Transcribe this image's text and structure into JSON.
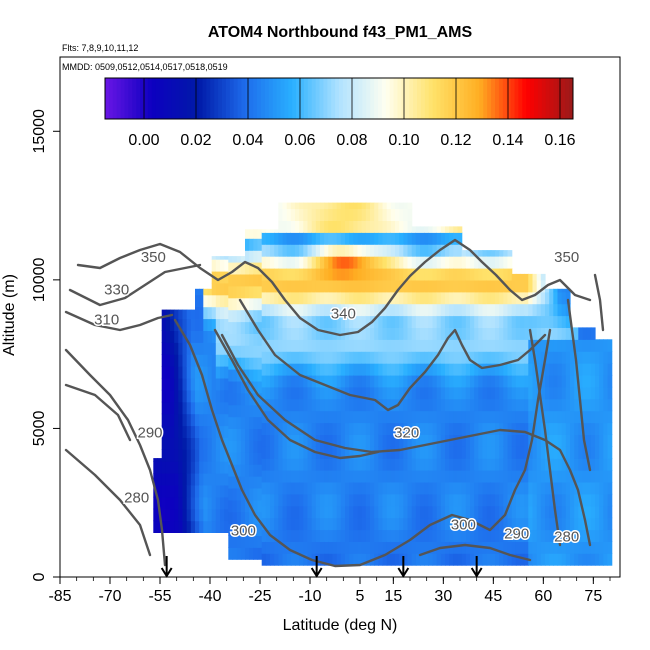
{
  "chart_data": {
    "type": "heatmap",
    "title": "ATOM4 Northbound f43_PM1_AMS",
    "subtitle_flights": "Flts: 7,8,9,10,11,12",
    "subtitle_dates": "MMDD: 0509,0512,0514,0517,0518,0519",
    "xlabel": "Latitude (deg N)",
    "ylabel": "Altitude (m)",
    "xlim": [
      -85,
      83
    ],
    "ylim": [
      0,
      17500
    ],
    "x_ticks": [
      -85,
      -70,
      -55,
      -40,
      -25,
      -10,
      5,
      15,
      30,
      45,
      60,
      75
    ],
    "y_ticks": [
      0,
      5000,
      10000,
      15000
    ],
    "colorbar": {
      "range": [
        -0.015,
        0.165
      ],
      "ticks": [
        "0.00",
        "0.02",
        "0.04",
        "0.06",
        "0.08",
        "0.10",
        "0.12",
        "0.14",
        "0.16"
      ],
      "tick_values": [
        0.0,
        0.02,
        0.04,
        0.06,
        0.08,
        0.1,
        0.12,
        0.14,
        0.16
      ],
      "colors": [
        "#6a16e6",
        "#0d00c0",
        "#001aa8",
        "#1e6cec",
        "#29b0ff",
        "#b0e2ff",
        "#fffff0",
        "#ffe26a",
        "#ffae22",
        "#ff0000",
        "#9a1a1a"
      ]
    },
    "contour_labels": [
      {
        "label": "350",
        "x": -57,
        "y": 10600
      },
      {
        "label": "330",
        "x": -68,
        "y": 9500
      },
      {
        "label": "310",
        "x": -71,
        "y": 8500
      },
      {
        "label": "290",
        "x": -58,
        "y": 4700
      },
      {
        "label": "280",
        "x": -62,
        "y": 2500
      },
      {
        "label": "300",
        "x": -30,
        "y": 1400
      },
      {
        "label": "340",
        "x": 0,
        "y": 8700
      },
      {
        "label": "320",
        "x": 19,
        "y": 4700
      },
      {
        "label": "300",
        "x": 36,
        "y": 1600
      },
      {
        "label": "290",
        "x": 52,
        "y": 1300
      },
      {
        "label": "280",
        "x": 67,
        "y": 1200
      },
      {
        "label": "350",
        "x": 67,
        "y": 10600
      }
    ],
    "flight_profile_markers_lat": [
      -53,
      -8,
      18,
      40
    ],
    "heatmap_summary": [
      {
        "region": "southern high latitudes, 1500-9000 m",
        "lat_range": [
          -57,
          -40
        ],
        "value_approx": 0.01
      },
      {
        "region": "lower/mid troposphere",
        "lat_range": [
          -40,
          80
        ],
        "value_approx": 0.045
      },
      {
        "region": "upper troposphere 9000-11000 m",
        "lat_range": [
          -40,
          50
        ],
        "value_approx": 0.12
      },
      {
        "region": "peak near 10700 m",
        "lat_range": [
          -5,
          5
        ],
        "value_approx": 0.15
      },
      {
        "region": "top layer 11500-12500 m",
        "lat_range": [
          -20,
          20
        ],
        "value_approx": 0.1
      }
    ]
  }
}
